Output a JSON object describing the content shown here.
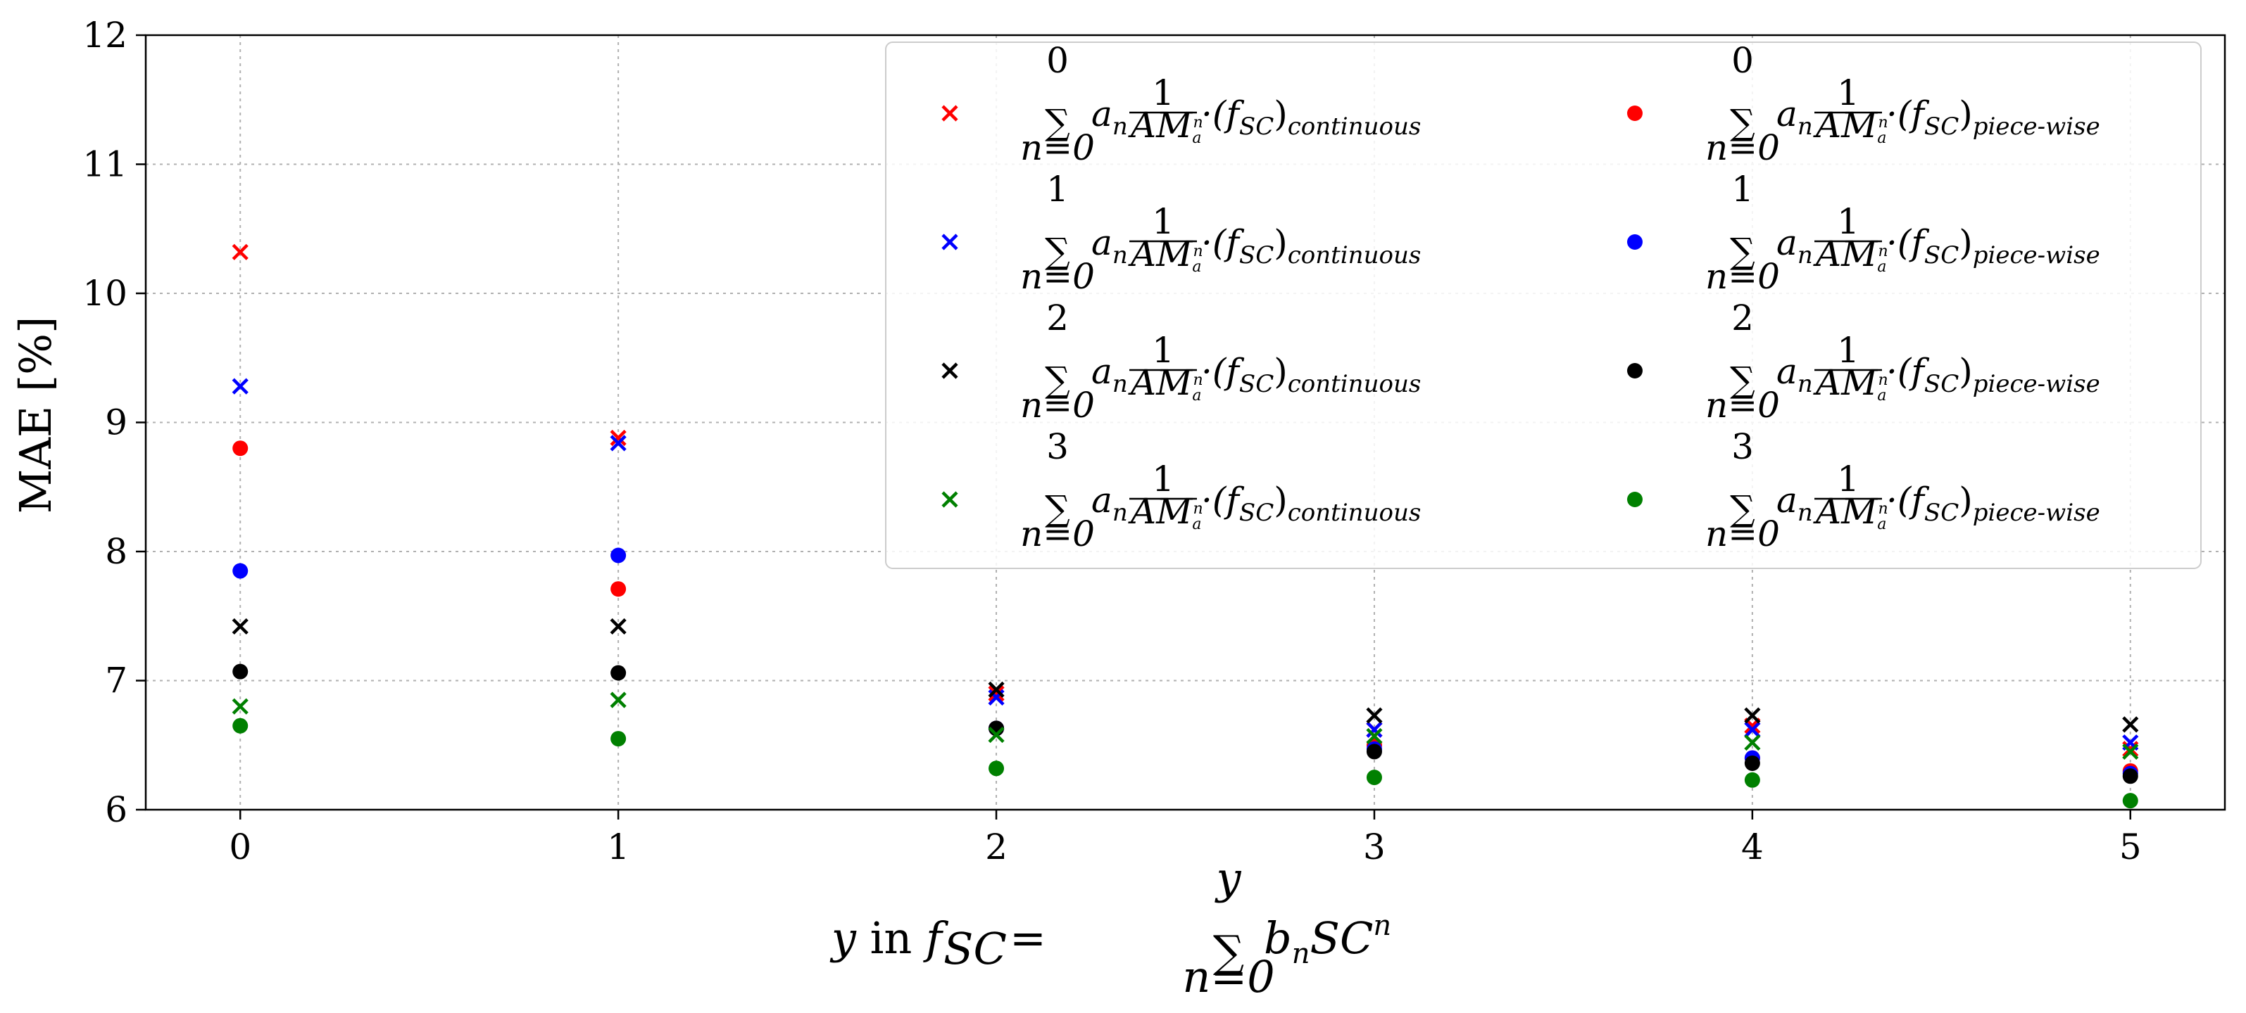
{
  "chart_data": {
    "type": "scatter",
    "title": "",
    "xlabel": {
      "prefix": "y in f",
      "sub": "SC",
      "eq": "=",
      "sum_top": "y",
      "sum_bottom": "n=0",
      "term": "b",
      "term_sub": "n",
      "term_rest": "SC",
      "term_sup": "n"
    },
    "ylabel": "MAE [%]",
    "xlim": [
      -0.25,
      5.25
    ],
    "ylim": [
      6,
      12
    ],
    "xticks": [
      "0",
      "1",
      "2",
      "3",
      "4",
      "5"
    ],
    "yticks": [
      "6",
      "7",
      "8",
      "9",
      "10",
      "11",
      "12"
    ],
    "grid": true,
    "legend": {
      "placement": "top-right",
      "columns": 2,
      "formula": {
        "sum_bottom": "n=0",
        "a": "a",
        "a_sub": "n",
        "frac_num": "1",
        "frac_den": "AM",
        "frac_den_sub": "a",
        "frac_den_sup": "n",
        "dot": "·(f",
        "f_sub": "SC",
        "close": ")"
      }
    },
    "x": [
      0,
      1,
      2,
      3,
      4,
      5
    ],
    "series": [
      {
        "order": "0",
        "variant": "continuous",
        "marker": "x",
        "color": "#ff0000",
        "values": [
          10.32,
          8.88,
          6.9,
          6.62,
          6.65,
          6.47
        ]
      },
      {
        "order": "1",
        "variant": "continuous",
        "marker": "x",
        "color": "#0000ff",
        "values": [
          9.28,
          8.84,
          6.87,
          6.62,
          6.62,
          6.52
        ]
      },
      {
        "order": "2",
        "variant": "continuous",
        "marker": "x",
        "color": "#000000",
        "values": [
          7.42,
          7.42,
          6.93,
          6.73,
          6.73,
          6.66
        ]
      },
      {
        "order": "3",
        "variant": "continuous",
        "marker": "x",
        "color": "#008000",
        "values": [
          6.8,
          6.85,
          6.58,
          6.57,
          6.52,
          6.45
        ]
      },
      {
        "order": "0",
        "variant": "piece-wise",
        "marker": "o",
        "color": "#ff0000",
        "values": [
          8.8,
          7.71,
          6.63,
          6.5,
          6.4,
          6.3
        ]
      },
      {
        "order": "1",
        "variant": "piece-wise",
        "marker": "o",
        "color": "#0000ff",
        "values": [
          7.85,
          7.97,
          6.63,
          6.47,
          6.4,
          6.28
        ]
      },
      {
        "order": "2",
        "variant": "piece-wise",
        "marker": "o",
        "color": "#000000",
        "values": [
          7.07,
          7.06,
          6.63,
          6.45,
          6.36,
          6.26
        ]
      },
      {
        "order": "3",
        "variant": "piece-wise",
        "marker": "o",
        "color": "#008000",
        "values": [
          6.65,
          6.55,
          6.32,
          6.25,
          6.23,
          6.07
        ]
      }
    ]
  }
}
